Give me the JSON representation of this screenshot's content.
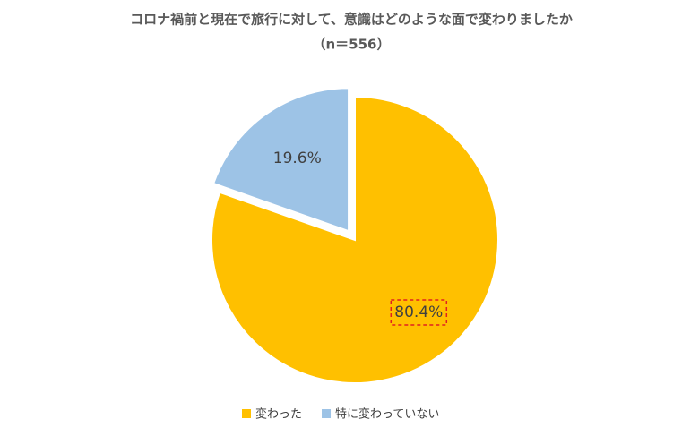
{
  "chart_data": {
    "type": "pie",
    "title": "コロナ禍前と現在で旅行に対して、意識はどのような面で変わりましたか",
    "subtitle": "（n＝556）",
    "categories": [
      "変わった",
      "特に変わっていない"
    ],
    "values": [
      80.4,
      19.6
    ],
    "value_labels": [
      "80.4%",
      "19.6%"
    ],
    "colors": [
      "#FFC000",
      "#9DC3E6"
    ],
    "legend": "bottom"
  }
}
